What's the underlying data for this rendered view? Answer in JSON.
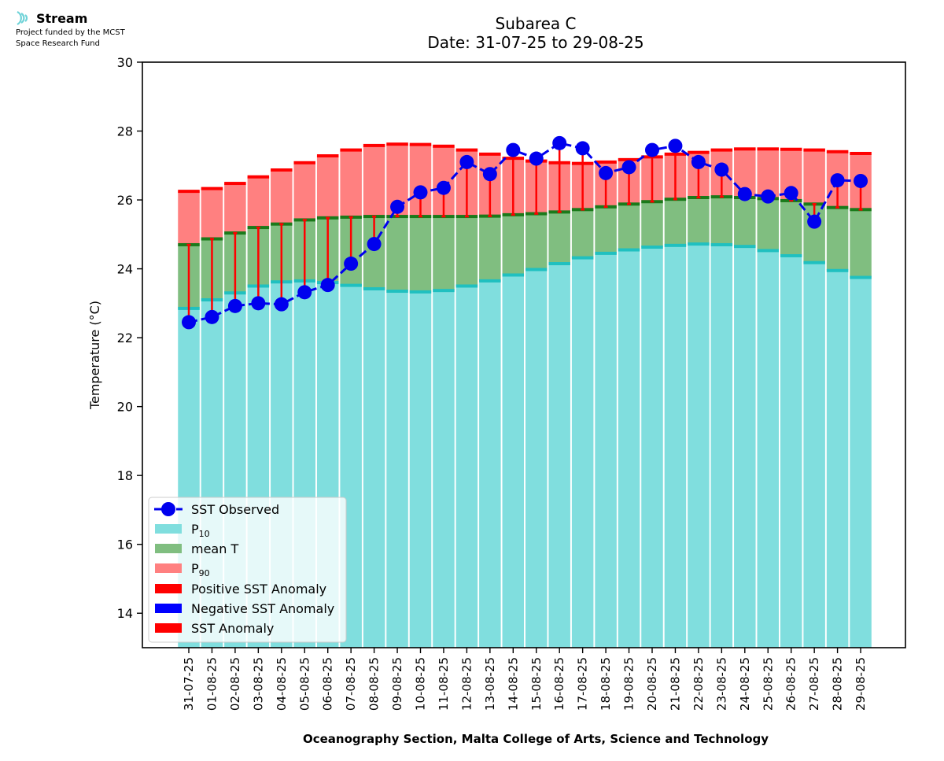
{
  "logo": {
    "brand": "Stream",
    "funding_line1": "Project funded by the MCST",
    "funding_line2": "Space Research Fund"
  },
  "colors": {
    "p10": "#80dede",
    "p10_edge": "#20c0c0",
    "mean": "#80be80",
    "mean_edge": "#1a7a1a",
    "p90": "#ff8080",
    "p90_edge": "#ff0000",
    "observed": "#0000ee",
    "positive_anomaly": "#ff0000",
    "negative_anomaly": "#0000ff",
    "anomaly": "#ff0000"
  },
  "chart_data": {
    "type": "bar",
    "title": "Subarea C",
    "subtitle": "Date: 31-07-25 to 29-08-25",
    "xlabel": "Oceanography Section, Malta College of Arts, Science and Technology",
    "ylabel": "Temperature (°C)",
    "ylim": [
      13,
      30
    ],
    "yticks": [
      14,
      16,
      18,
      20,
      22,
      24,
      26,
      28,
      30
    ],
    "grid": false,
    "legend_position": "lower-left",
    "categories": [
      "31-07-25",
      "01-08-25",
      "02-08-25",
      "03-08-25",
      "04-08-25",
      "05-08-25",
      "06-08-25",
      "07-08-25",
      "08-08-25",
      "09-08-25",
      "10-08-25",
      "11-08-25",
      "12-08-25",
      "13-08-25",
      "14-08-25",
      "15-08-25",
      "16-08-25",
      "17-08-25",
      "18-08-25",
      "19-08-25",
      "20-08-25",
      "21-08-25",
      "22-08-25",
      "23-08-25",
      "24-08-25",
      "25-08-25",
      "26-08-25",
      "27-08-25",
      "28-08-25",
      "29-08-25"
    ],
    "series": [
      {
        "name": "P10",
        "values": [
          22.85,
          23.1,
          23.3,
          23.5,
          23.62,
          23.65,
          23.6,
          23.52,
          23.42,
          23.35,
          23.33,
          23.37,
          23.5,
          23.65,
          23.82,
          23.98,
          24.15,
          24.32,
          24.45,
          24.55,
          24.63,
          24.68,
          24.72,
          24.7,
          24.65,
          24.53,
          24.38,
          24.18,
          23.95,
          23.75
        ]
      },
      {
        "name": "mean T",
        "values": [
          24.7,
          24.87,
          25.04,
          25.2,
          25.3,
          25.42,
          25.48,
          25.5,
          25.52,
          25.52,
          25.52,
          25.52,
          25.52,
          25.53,
          25.57,
          25.6,
          25.65,
          25.72,
          25.8,
          25.88,
          25.95,
          26.02,
          26.07,
          26.09,
          26.07,
          26.04,
          25.98,
          25.88,
          25.78,
          25.72
        ]
      },
      {
        "name": "P90",
        "values": [
          26.25,
          26.33,
          26.48,
          26.67,
          26.87,
          27.08,
          27.28,
          27.45,
          27.58,
          27.62,
          27.61,
          27.56,
          27.45,
          27.33,
          27.21,
          27.13,
          27.08,
          27.06,
          27.1,
          27.17,
          27.25,
          27.33,
          27.38,
          27.45,
          27.48,
          27.48,
          27.47,
          27.45,
          27.4,
          27.35
        ]
      },
      {
        "name": "SST Observed",
        "values": [
          22.45,
          22.6,
          22.92,
          23.0,
          22.97,
          23.32,
          23.53,
          24.15,
          24.72,
          25.8,
          26.22,
          26.35,
          27.1,
          26.75,
          27.45,
          27.2,
          27.65,
          27.5,
          26.78,
          26.95,
          27.45,
          27.57,
          27.1,
          26.88,
          26.17,
          26.1,
          26.2,
          25.37,
          26.57,
          26.55
        ]
      }
    ],
    "legend": [
      {
        "key": "observed",
        "label": "SST Observed"
      },
      {
        "key": "p10",
        "label": "P",
        "sub": "10"
      },
      {
        "key": "mean",
        "label": "mean T"
      },
      {
        "key": "p90",
        "label": "P",
        "sub": "90"
      },
      {
        "key": "positive_anomaly",
        "label": "Positive SST Anomaly"
      },
      {
        "key": "negative_anomaly",
        "label": "Negative SST Anomaly"
      },
      {
        "key": "anomaly",
        "label": "SST Anomaly"
      }
    ]
  }
}
